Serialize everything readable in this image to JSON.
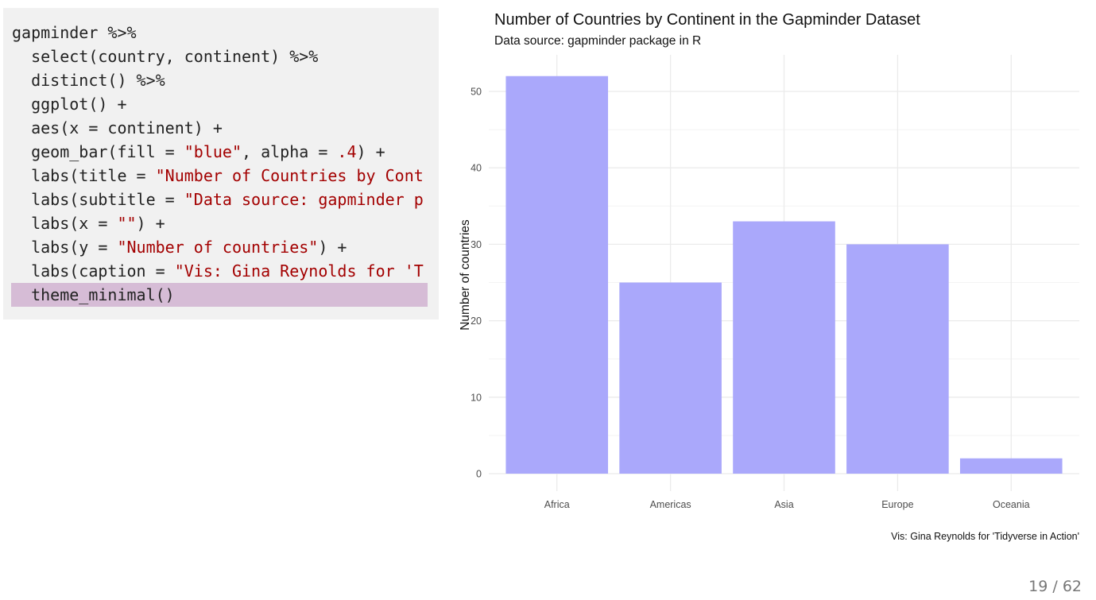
{
  "code": {
    "lines": [
      [
        {
          "t": "gapminder %>%",
          "c": "plain"
        }
      ],
      [
        {
          "t": "  select(country, continent) %>%",
          "c": "plain"
        }
      ],
      [
        {
          "t": "  distinct() %>%",
          "c": "plain"
        }
      ],
      [
        {
          "t": "  ggplot() +",
          "c": "plain"
        }
      ],
      [
        {
          "t": "  aes(x = continent) +",
          "c": "plain"
        }
      ],
      [
        {
          "t": "  geom_bar(fill = ",
          "c": "plain"
        },
        {
          "t": "\"blue\"",
          "c": "str"
        },
        {
          "t": ", alpha = ",
          "c": "plain"
        },
        {
          "t": ".4",
          "c": "num"
        },
        {
          "t": ") +",
          "c": "plain"
        }
      ],
      [
        {
          "t": "  labs(title = ",
          "c": "plain"
        },
        {
          "t": "\"Number of Countries by Cont",
          "c": "str"
        }
      ],
      [
        {
          "t": "  labs(subtitle = ",
          "c": "plain"
        },
        {
          "t": "\"Data source: gapminder p",
          "c": "str"
        }
      ],
      [
        {
          "t": "  labs(x = ",
          "c": "plain"
        },
        {
          "t": "\"\"",
          "c": "str"
        },
        {
          "t": ") +",
          "c": "plain"
        }
      ],
      [
        {
          "t": "  labs(y = ",
          "c": "plain"
        },
        {
          "t": "\"Number of countries\"",
          "c": "str"
        },
        {
          "t": ") +",
          "c": "plain"
        }
      ],
      [
        {
          "t": "  labs(caption = ",
          "c": "plain"
        },
        {
          "t": "\"Vis: Gina Reynolds for 'T",
          "c": "str"
        }
      ],
      [
        {
          "t": "  theme_minimal()",
          "c": "plain"
        }
      ]
    ],
    "highlighted_line": 11,
    "colors": {
      "string": "#a30000",
      "plain": "#222222",
      "highlight": "#d6bcd6",
      "panel": "#f1f1f1"
    }
  },
  "chart_data": {
    "type": "bar",
    "title": "Number of Countries by Continent in the Gapminder Dataset",
    "subtitle": "Data source: gapminder package in R",
    "caption": "Vis: Gina Reynolds for 'Tidyverse in Action'",
    "xlabel": "",
    "ylabel": "Number of countries",
    "categories": [
      "Africa",
      "Americas",
      "Asia",
      "Europe",
      "Oceania"
    ],
    "values": [
      52,
      25,
      33,
      30,
      2
    ],
    "ylim": [
      0,
      56
    ],
    "yticks": [
      0,
      10,
      20,
      30,
      40,
      50
    ],
    "grid": true,
    "bar_color": "#aaa8fb",
    "grid_color": "#ebebeb"
  },
  "slide": {
    "page_number": "19 / 62"
  }
}
